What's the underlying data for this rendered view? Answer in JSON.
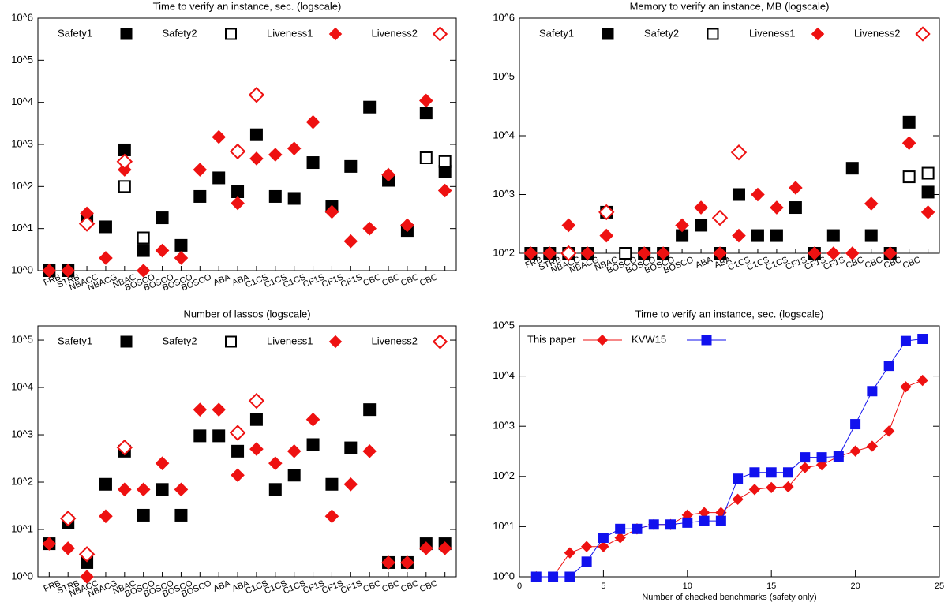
{
  "chart_data": [
    {
      "type": "scatter",
      "title": "Time to verify an instance, sec. (logscale)",
      "log_y": true,
      "categories": [
        "FRB",
        "STRB",
        "NBACC",
        "NBACG",
        "NBAC",
        "BOSCO",
        "BOSCO",
        "BOSCO",
        "BOSCO",
        "ABA",
        "ABA",
        "C1CS",
        "C1CS",
        "C1CS",
        "CF1S",
        "CF1S",
        "CF1S",
        "CBC",
        "CBC",
        "CBC",
        "CBC",
        null
      ],
      "ylim": [
        1,
        1000000
      ],
      "yticks": [
        {
          "value": 1,
          "label": "10^0"
        },
        {
          "value": 10,
          "label": "10^1"
        },
        {
          "value": 100,
          "label": "10^2"
        },
        {
          "value": 1000,
          "label": "10^3"
        },
        {
          "value": 10000,
          "label": "10^4"
        },
        {
          "value": 100000,
          "label": "10^5"
        },
        {
          "value": 1000000,
          "label": "10^6"
        }
      ],
      "series": [
        {
          "name": "Safety1",
          "color": "#000000",
          "marker": "square",
          "filled": true,
          "values": [
            1,
            1,
            17,
            11,
            740,
            3,
            18,
            4,
            58,
            160,
            75,
            1700,
            58,
            52,
            370,
            33,
            300,
            7700,
            140,
            9,
            5600,
            230
          ]
        },
        {
          "name": "Safety2",
          "color": "#000000",
          "marker": "square",
          "filled": false,
          "values": [
            null,
            null,
            null,
            null,
            100,
            6,
            null,
            null,
            null,
            null,
            null,
            null,
            null,
            null,
            null,
            null,
            null,
            null,
            null,
            null,
            480,
            390
          ]
        },
        {
          "name": "Liveness1",
          "color": "#ee1111",
          "marker": "diamond",
          "filled": true,
          "values": [
            1,
            1,
            23,
            2,
            250,
            1,
            3,
            2,
            250,
            1500,
            40,
            460,
            570,
            800,
            3400,
            25,
            5,
            10,
            190,
            12,
            11000,
            80
          ]
        },
        {
          "name": "Liveness2",
          "color": "#ee1111",
          "marker": "diamond",
          "filled": false,
          "values": [
            null,
            null,
            13,
            null,
            390,
            null,
            null,
            null,
            null,
            null,
            680,
            15000,
            null,
            null,
            null,
            null,
            null,
            null,
            null,
            null,
            null,
            null
          ]
        }
      ]
    },
    {
      "type": "scatter",
      "title": "Memory to verify an instance, MB (logscale)",
      "log_y": true,
      "categories": [
        "FRB",
        "STRB",
        "NBACC",
        "NBACG",
        "NBAC",
        "BOSCO",
        "BOSCO",
        "BOSCO",
        "BOSCO",
        "ABA",
        "ABA",
        "C1CS",
        "C1CS",
        "C1CS",
        "CF1S",
        "CF1S",
        "CF1S",
        "CBC",
        "CBC",
        "CBC",
        "CBC",
        null
      ],
      "ylim": [
        100,
        1000000
      ],
      "yticks": [
        {
          "value": 100,
          "label": "10^2"
        },
        {
          "value": 1000,
          "label": "10^3"
        },
        {
          "value": 10000,
          "label": "10^4"
        },
        {
          "value": 100000,
          "label": "10^5"
        },
        {
          "value": 1000000,
          "label": "10^6"
        }
      ],
      "series": [
        {
          "name": "Safety1",
          "color": "#000000",
          "marker": "square",
          "filled": true,
          "values": [
            100,
            100,
            100,
            100,
            500,
            null,
            100,
            100,
            200,
            300,
            100,
            1000,
            200,
            200,
            600,
            100,
            200,
            2800,
            200,
            100,
            17000,
            1100
          ]
        },
        {
          "name": "Safety2",
          "color": "#000000",
          "marker": "square",
          "filled": false,
          "values": [
            null,
            null,
            null,
            null,
            null,
            100,
            null,
            null,
            null,
            null,
            null,
            null,
            null,
            null,
            null,
            null,
            null,
            null,
            null,
            null,
            2000,
            2300
          ]
        },
        {
          "name": "Liveness1",
          "color": "#ee1111",
          "marker": "diamond",
          "filled": true,
          "values": [
            100,
            100,
            300,
            100,
            200,
            null,
            100,
            100,
            300,
            600,
            100,
            200,
            1000,
            600,
            1300,
            100,
            100,
            100,
            700,
            100,
            7500,
            500
          ]
        },
        {
          "name": "Liveness2",
          "color": "#ee1111",
          "marker": "diamond",
          "filled": false,
          "values": [
            null,
            null,
            100,
            null,
            500,
            null,
            null,
            null,
            null,
            null,
            400,
            5200,
            null,
            null,
            null,
            null,
            null,
            null,
            null,
            null,
            null,
            null
          ]
        }
      ]
    },
    {
      "type": "scatter",
      "title": "Number of lassos (logscale)",
      "log_y": true,
      "categories": [
        "FRB",
        "STRB",
        "NBACC",
        "NBACG",
        "NBAC",
        "BOSCO",
        "BOSCO",
        "BOSCO",
        "BOSCO",
        "ABA",
        "ABA",
        "C1CS",
        "C1CS",
        "C1CS",
        "CF1S",
        "CF1S",
        "CF1S",
        "CBC",
        "CBC",
        "CBC",
        "CBC",
        null
      ],
      "ylim": [
        1,
        200000
      ],
      "yticks": [
        {
          "value": 1,
          "label": "10^0"
        },
        {
          "value": 10,
          "label": "10^1"
        },
        {
          "value": 100,
          "label": "10^2"
        },
        {
          "value": 1000,
          "label": "10^3"
        },
        {
          "value": 10000,
          "label": "10^4"
        },
        {
          "value": 100000,
          "label": "10^5"
        }
      ],
      "series": [
        {
          "name": "Safety1",
          "color": "#000000",
          "marker": "square",
          "filled": true,
          "values": [
            5,
            14,
            2,
            90,
            450,
            20,
            70,
            20,
            950,
            950,
            450,
            2100,
            70,
            140,
            620,
            90,
            530,
            3400,
            2,
            2,
            5,
            5
          ]
        },
        {
          "name": "Safety2",
          "color": "#000000",
          "marker": "square",
          "filled": false,
          "values": [
            null,
            null,
            null,
            null,
            null,
            null,
            null,
            null,
            null,
            null,
            null,
            null,
            null,
            null,
            null,
            null,
            null,
            null,
            null,
            null,
            null,
            null
          ]
        },
        {
          "name": "Liveness1",
          "color": "#ee1111",
          "marker": "diamond",
          "filled": true,
          "values": [
            5,
            4,
            1,
            19,
            70,
            70,
            250,
            70,
            3400,
            3400,
            140,
            500,
            250,
            450,
            2100,
            19,
            90,
            450,
            2,
            2,
            4,
            4
          ]
        },
        {
          "name": "Liveness2",
          "color": "#ee1111",
          "marker": "diamond",
          "filled": false,
          "values": [
            null,
            17,
            3,
            null,
            540,
            null,
            null,
            null,
            null,
            null,
            1100,
            5200,
            null,
            null,
            null,
            null,
            null,
            null,
            null,
            null,
            null,
            null
          ]
        }
      ]
    },
    {
      "type": "line",
      "title": "Time to verify an instance, sec. (logscale)",
      "log_y": true,
      "x_label": "Number of checked benchmarks (safety only)",
      "x": [
        1,
        2,
        3,
        4,
        5,
        6,
        7,
        8,
        9,
        10,
        11,
        12,
        13,
        14,
        15,
        16,
        17,
        18,
        19,
        20,
        21,
        22,
        23,
        24
      ],
      "xlim": [
        0,
        25
      ],
      "xticks": [
        0,
        5,
        10,
        15,
        20,
        25
      ],
      "ylim": [
        1,
        100000
      ],
      "yticks": [
        {
          "value": 1,
          "label": "10^0"
        },
        {
          "value": 10,
          "label": "10^1"
        },
        {
          "value": 100,
          "label": "10^2"
        },
        {
          "value": 1000,
          "label": "10^3"
        },
        {
          "value": 10000,
          "label": "10^4"
        },
        {
          "value": 100000,
          "label": "10^5"
        }
      ],
      "series": [
        {
          "name": "This paper",
          "color": "#ee1111",
          "marker": "diamond",
          "filled": true,
          "values": [
            1,
            1,
            3,
            4,
            4,
            6,
            9,
            11,
            11,
            17,
            19,
            19,
            35,
            55,
            60,
            62,
            150,
            170,
            250,
            320,
            400,
            800,
            6100,
            8200
          ]
        },
        {
          "name": "KVW15",
          "color": "#1111ee",
          "marker": "square",
          "filled": true,
          "values": [
            1,
            1,
            1,
            2,
            6,
            9,
            9,
            11,
            11,
            12,
            13,
            13,
            90,
            120,
            120,
            120,
            240,
            240,
            250,
            1100,
            5000,
            16000,
            50000,
            55000
          ]
        }
      ]
    }
  ]
}
